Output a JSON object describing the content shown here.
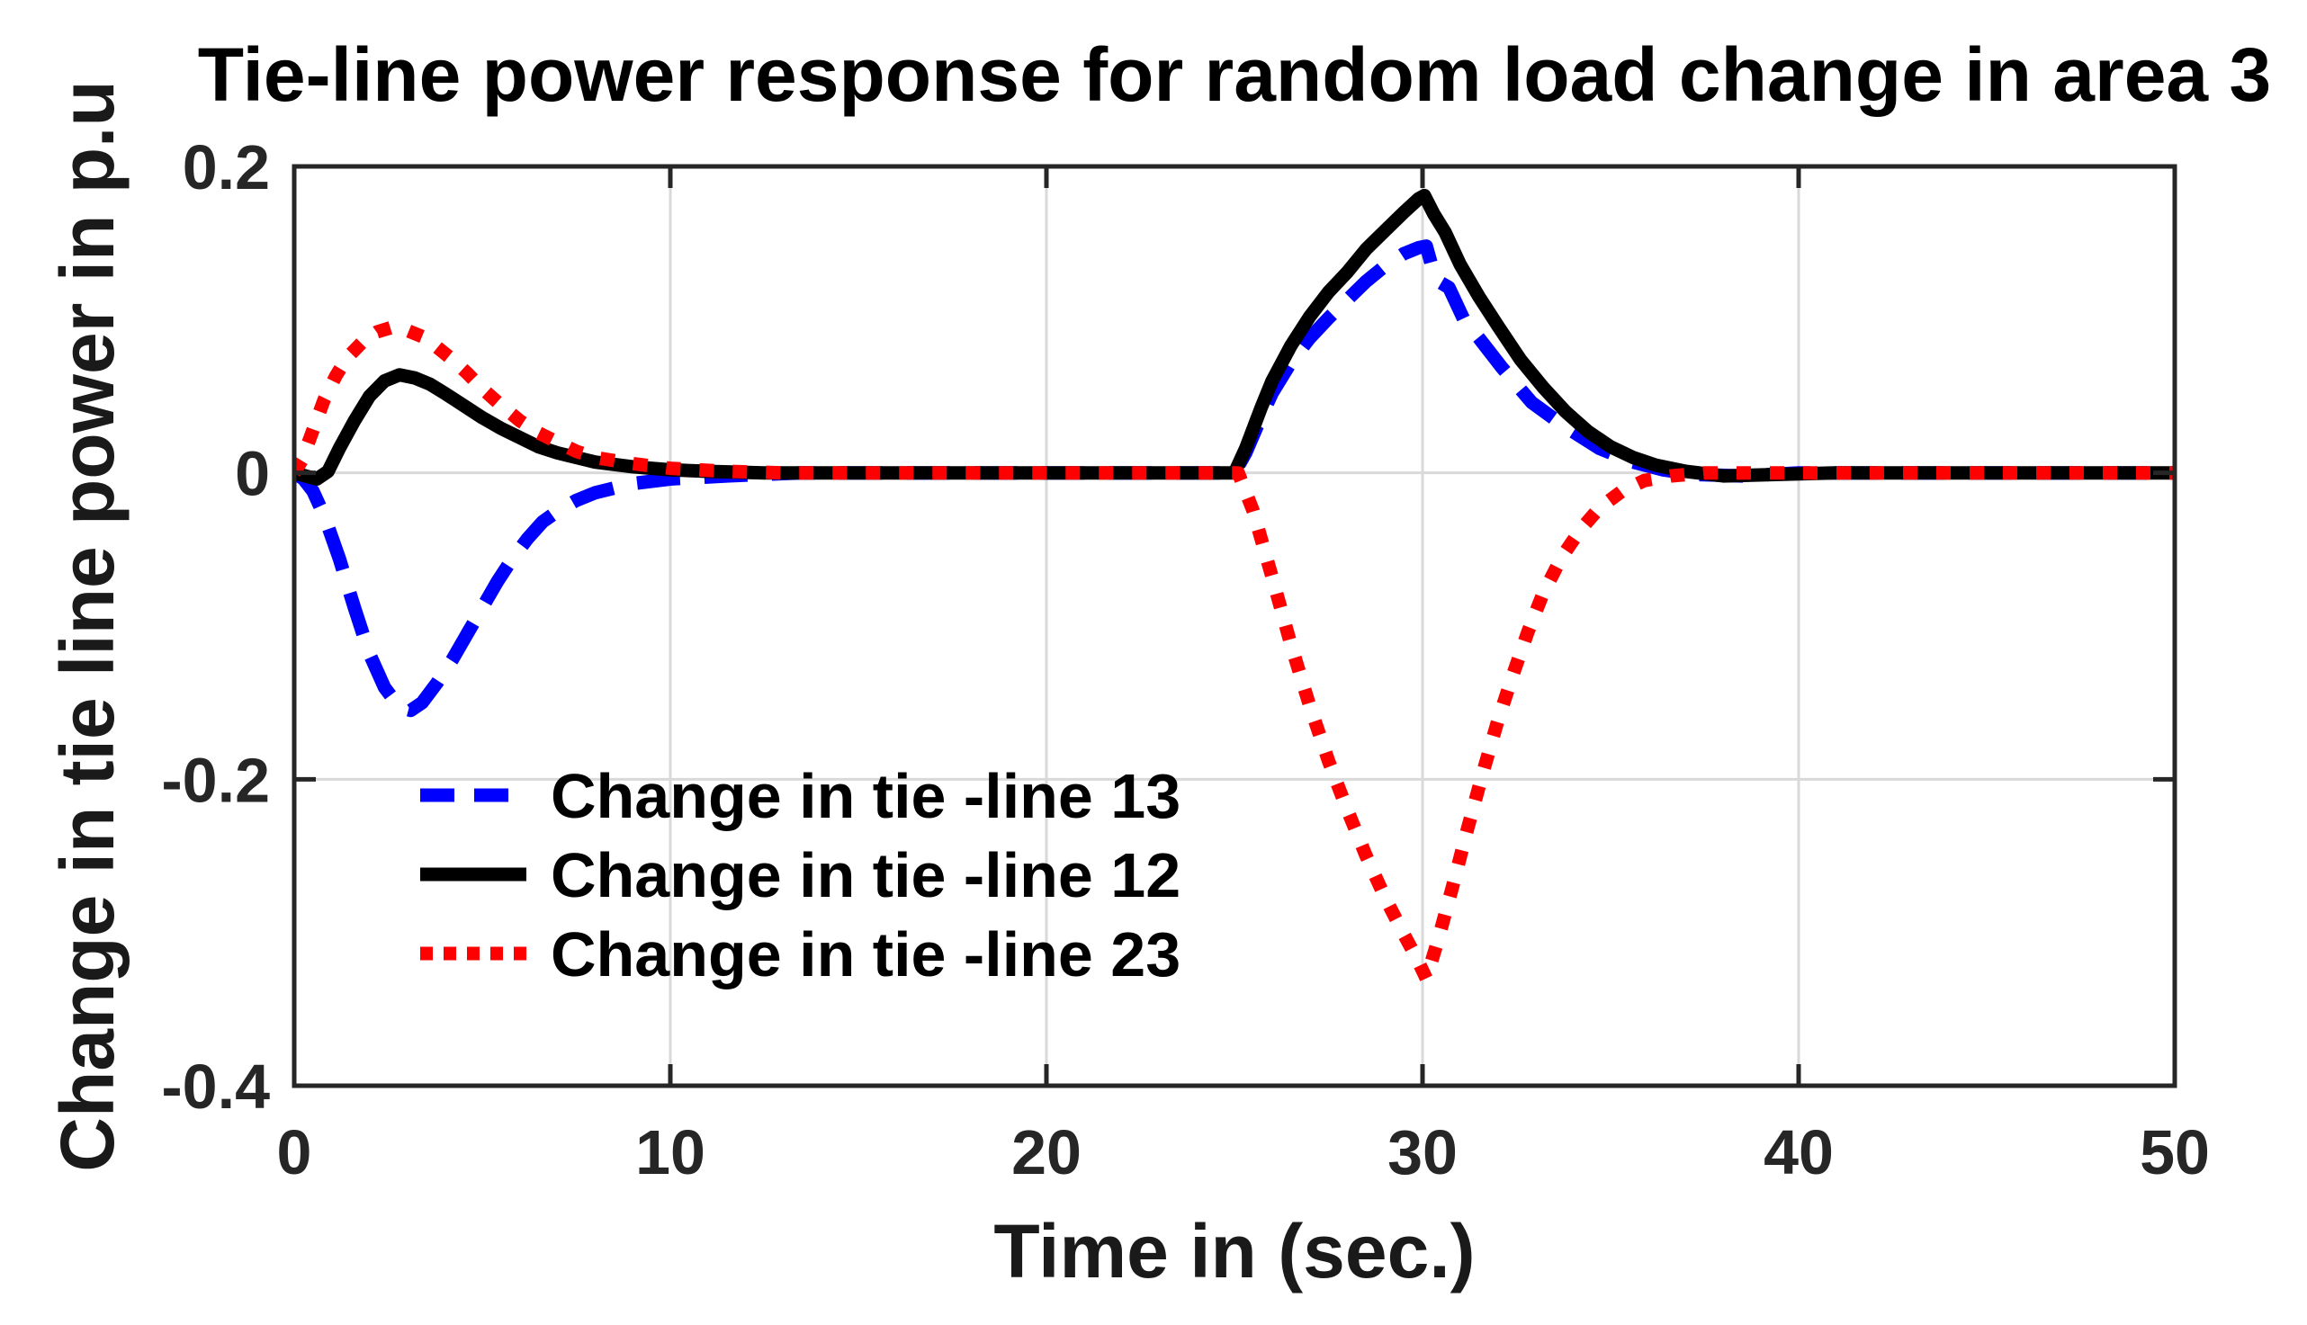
{
  "chart_data": {
    "type": "line",
    "title": "Tie-line power response for random load change in area 3",
    "xlabel": "Time in (sec.)",
    "ylabel": "Change in tie line power in p.u",
    "xlim": [
      0,
      50
    ],
    "ylim": [
      -0.4,
      0.2
    ],
    "xtick_values": [
      0,
      10,
      20,
      30,
      40,
      50
    ],
    "xtick_labels": [
      "0",
      "10",
      "20",
      "30",
      "40",
      "50"
    ],
    "ytick_values": [
      0.2,
      0,
      -0.2,
      -0.4
    ],
    "ytick_labels": [
      "0.2",
      "0",
      "-0.2",
      "-0.4"
    ],
    "grid": true,
    "legend_position": "inside-lower-left",
    "background_color": "#ffffff",
    "axis_color": "#262626",
    "grid_color": "#d9d9d9",
    "line_width": 15,
    "series": [
      {
        "name": "Change in tie -line 13",
        "color": "#0000ff",
        "style": "dashed",
        "points": [
          [
            0,
            0
          ],
          [
            0.25,
            -0.004
          ],
          [
            0.5,
            -0.012
          ],
          [
            0.8,
            -0.028
          ],
          [
            1.2,
            -0.056
          ],
          [
            1.6,
            -0.088
          ],
          [
            2.0,
            -0.118
          ],
          [
            2.4,
            -0.14
          ],
          [
            2.8,
            -0.153
          ],
          [
            3.1,
            -0.155
          ],
          [
            3.4,
            -0.15
          ],
          [
            3.8,
            -0.137
          ],
          [
            4.2,
            -0.122
          ],
          [
            4.6,
            -0.105
          ],
          [
            5.0,
            -0.088
          ],
          [
            5.4,
            -0.071
          ],
          [
            5.8,
            -0.056
          ],
          [
            6.2,
            -0.043
          ],
          [
            6.6,
            -0.032
          ],
          [
            7.0,
            -0.025
          ],
          [
            7.5,
            -0.018
          ],
          [
            8.0,
            -0.013
          ],
          [
            9.0,
            -0.007
          ],
          [
            10.0,
            -0.004
          ],
          [
            11.5,
            -0.002
          ],
          [
            13.5,
            0
          ],
          [
            25.0,
            0
          ],
          [
            25.3,
            0.013
          ],
          [
            25.7,
            0.036
          ],
          [
            26.0,
            0.052
          ],
          [
            26.5,
            0.072
          ],
          [
            27.0,
            0.088
          ],
          [
            27.5,
            0.101
          ],
          [
            28.0,
            0.113
          ],
          [
            28.5,
            0.125
          ],
          [
            29.0,
            0.135
          ],
          [
            29.5,
            0.143
          ],
          [
            29.9,
            0.147
          ],
          [
            30.1,
            0.148
          ],
          [
            30.35,
            0.126
          ],
          [
            30.7,
            0.121
          ],
          [
            31.1,
            0.1
          ],
          [
            31.5,
            0.088
          ],
          [
            32.1,
            0.069
          ],
          [
            32.9,
            0.046
          ],
          [
            33.8,
            0.03
          ],
          [
            34.7,
            0.016
          ],
          [
            35.6,
            0.007
          ],
          [
            36.4,
            0.002
          ],
          [
            37.2,
            -0.001
          ],
          [
            38.5,
            -0.002
          ],
          [
            40.0,
            0
          ],
          [
            50.0,
            0
          ]
        ]
      },
      {
        "name": "Change in tie -line 12",
        "color": "#000000",
        "style": "solid",
        "points": [
          [
            0,
            0
          ],
          [
            0.3,
            -0.002
          ],
          [
            0.6,
            -0.004
          ],
          [
            0.9,
            0.001
          ],
          [
            1.2,
            0.016
          ],
          [
            1.6,
            0.034
          ],
          [
            2.0,
            0.05
          ],
          [
            2.4,
            0.06
          ],
          [
            2.8,
            0.064
          ],
          [
            3.2,
            0.062
          ],
          [
            3.6,
            0.058
          ],
          [
            4.0,
            0.052
          ],
          [
            4.5,
            0.044
          ],
          [
            5.0,
            0.036
          ],
          [
            5.5,
            0.029
          ],
          [
            6.0,
            0.023
          ],
          [
            6.5,
            0.017
          ],
          [
            7.0,
            0.013
          ],
          [
            7.5,
            0.01
          ],
          [
            8.0,
            0.007
          ],
          [
            9.0,
            0.004
          ],
          [
            10.0,
            0.002
          ],
          [
            11.0,
            0.001
          ],
          [
            12.5,
            0
          ],
          [
            25.0,
            0
          ],
          [
            25.3,
            0.016
          ],
          [
            25.7,
            0.042
          ],
          [
            26.0,
            0.06
          ],
          [
            26.5,
            0.083
          ],
          [
            27.0,
            0.102
          ],
          [
            27.5,
            0.118
          ],
          [
            28.0,
            0.131
          ],
          [
            28.5,
            0.146
          ],
          [
            29.0,
            0.158
          ],
          [
            29.5,
            0.17
          ],
          [
            29.9,
            0.179
          ],
          [
            30.05,
            0.181
          ],
          [
            30.3,
            0.169
          ],
          [
            30.6,
            0.157
          ],
          [
            31.0,
            0.136
          ],
          [
            31.5,
            0.115
          ],
          [
            32.0,
            0.096
          ],
          [
            32.6,
            0.074
          ],
          [
            33.2,
            0.056
          ],
          [
            33.8,
            0.04
          ],
          [
            34.4,
            0.027
          ],
          [
            35.0,
            0.017
          ],
          [
            35.6,
            0.01
          ],
          [
            36.2,
            0.005
          ],
          [
            37.0,
            0.001
          ],
          [
            38.0,
            -0.002
          ],
          [
            39.5,
            -0.001
          ],
          [
            41.0,
            0
          ],
          [
            50.0,
            0
          ]
        ]
      },
      {
        "name": "Change in tie -line 23",
        "color": "#ff0000",
        "style": "dotted",
        "points": [
          [
            0,
            0
          ],
          [
            0.2,
            0.008
          ],
          [
            0.5,
            0.028
          ],
          [
            0.8,
            0.048
          ],
          [
            1.1,
            0.063
          ],
          [
            1.4,
            0.075
          ],
          [
            1.8,
            0.085
          ],
          [
            2.2,
            0.092
          ],
          [
            2.6,
            0.095
          ],
          [
            3.0,
            0.093
          ],
          [
            3.4,
            0.089
          ],
          [
            3.8,
            0.082
          ],
          [
            4.2,
            0.074
          ],
          [
            4.6,
            0.065
          ],
          [
            5.0,
            0.055
          ],
          [
            5.5,
            0.044
          ],
          [
            6.0,
            0.034
          ],
          [
            6.5,
            0.026
          ],
          [
            7.0,
            0.02
          ],
          [
            7.5,
            0.014
          ],
          [
            8.0,
            0.01
          ],
          [
            9.0,
            0.006
          ],
          [
            10.0,
            0.003
          ],
          [
            11.5,
            0.001
          ],
          [
            13.0,
            0
          ],
          [
            25.1,
            0
          ],
          [
            25.5,
            -0.025
          ],
          [
            26.0,
            -0.068
          ],
          [
            26.5,
            -0.112
          ],
          [
            27.0,
            -0.152
          ],
          [
            27.5,
            -0.188
          ],
          [
            28.0,
            -0.22
          ],
          [
            28.5,
            -0.25
          ],
          [
            29.0,
            -0.277
          ],
          [
            29.5,
            -0.301
          ],
          [
            29.85,
            -0.317
          ],
          [
            30.1,
            -0.33
          ],
          [
            30.4,
            -0.306
          ],
          [
            30.8,
            -0.27
          ],
          [
            31.2,
            -0.232
          ],
          [
            31.6,
            -0.196
          ],
          [
            32.0,
            -0.162
          ],
          [
            32.4,
            -0.132
          ],
          [
            32.8,
            -0.104
          ],
          [
            33.2,
            -0.079
          ],
          [
            33.7,
            -0.055
          ],
          [
            34.2,
            -0.037
          ],
          [
            34.7,
            -0.023
          ],
          [
            35.3,
            -0.012
          ],
          [
            35.9,
            -0.005
          ],
          [
            36.6,
            -0.002
          ],
          [
            37.5,
            0
          ],
          [
            50.0,
            0
          ]
        ]
      }
    ]
  }
}
